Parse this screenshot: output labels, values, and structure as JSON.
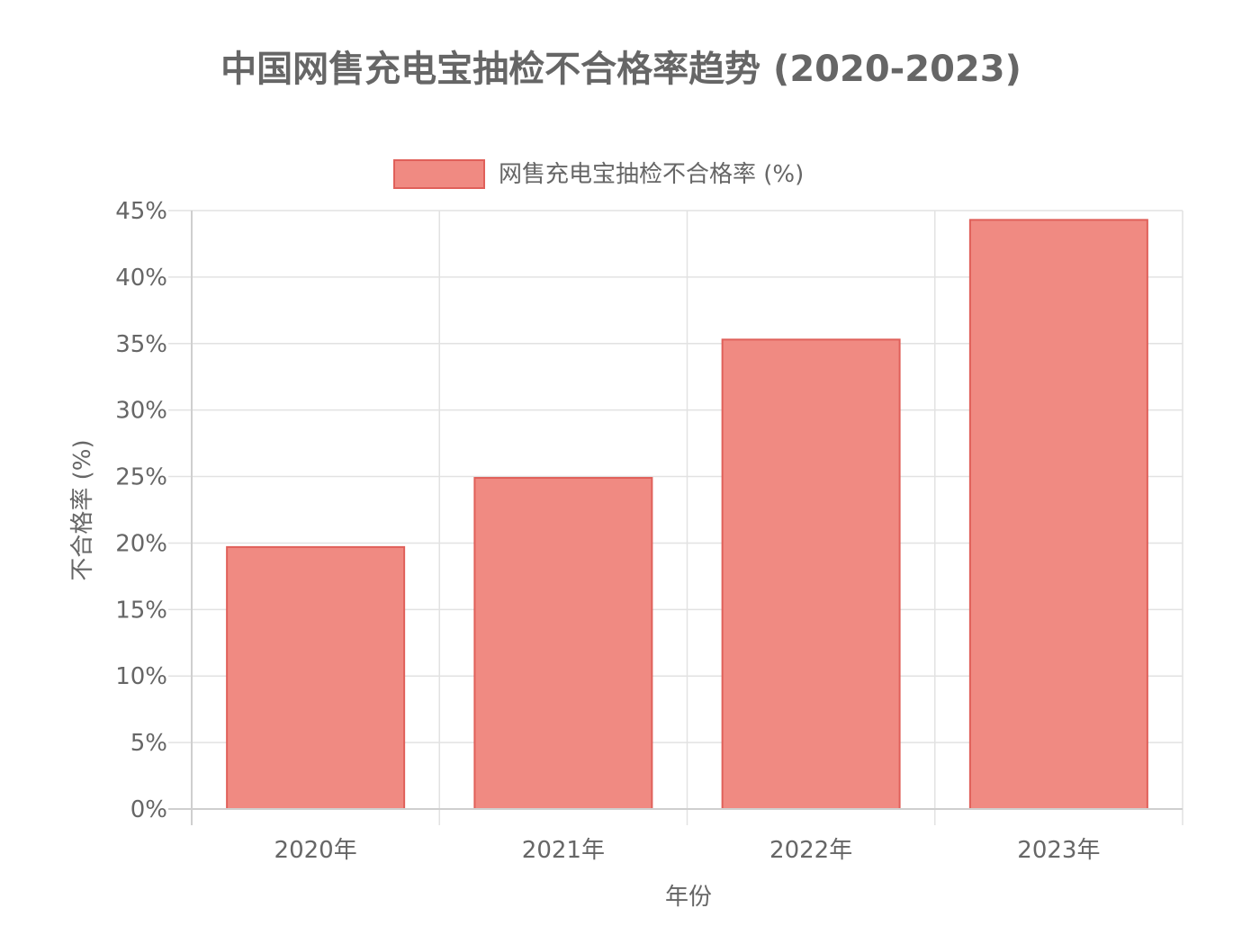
{
  "chart_data": {
    "type": "bar",
    "title": "中国网售充电宝抽检不合格率趋势 (2020-2023)",
    "categories": [
      "2020年",
      "2021年",
      "2022年",
      "2023年"
    ],
    "series": [
      {
        "name": "网售充电宝抽检不合格率 (%)",
        "values": [
          19.7,
          24.9,
          35.3,
          44.3
        ]
      }
    ],
    "xlabel": "年份",
    "ylabel": "不合格率 (%)",
    "ylim": [
      0,
      45
    ],
    "yticks": [
      "0%",
      "5%",
      "10%",
      "15%",
      "20%",
      "25%",
      "30%",
      "35%",
      "40%",
      "45%"
    ],
    "grid": true,
    "legend_position": "top-center",
    "colors": {
      "bar_fill": "#f08a82",
      "bar_border": "#e0605a",
      "grid": "#e2e2e2",
      "text": "#666666"
    }
  }
}
